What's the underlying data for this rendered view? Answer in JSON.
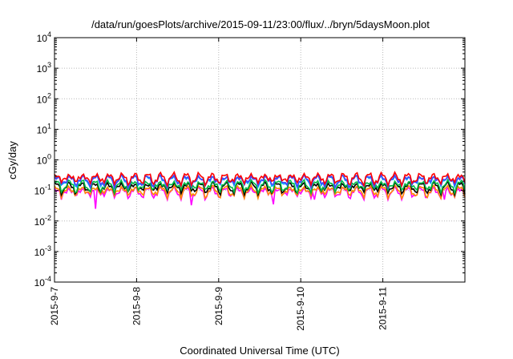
{
  "chart_data": {
    "type": "line",
    "title": "/data/run/goesPlots/archive/2015-09-11/23:00/flux/../bryn/5daysMoon.plot",
    "xlabel": "Coordinated Universal Time (UTC)",
    "ylabel": "cGy/day",
    "yscale": "log",
    "ylim": [
      0.0001,
      10000
    ],
    "xlim": [
      "2015-09-07",
      "2015-09-12"
    ],
    "grid": true,
    "x_ticks": [
      "2015-9-7",
      "2015-9-8",
      "2015-9-9",
      "2015-9-10",
      "2015-9-11"
    ],
    "y_ticks": [
      {
        "base": "10",
        "exp": "-4"
      },
      {
        "base": "10",
        "exp": "-3"
      },
      {
        "base": "10",
        "exp": "-2"
      },
      {
        "base": "10",
        "exp": "-1"
      },
      {
        "base": "10",
        "exp": "0"
      },
      {
        "base": "10",
        "exp": "1"
      },
      {
        "base": "10",
        "exp": "2"
      },
      {
        "base": "10",
        "exp": "3"
      },
      {
        "base": "10",
        "exp": "4"
      }
    ],
    "series": [
      {
        "color": "#ff00ff",
        "typical": 0.09,
        "dips": [
          {
            "x": "2015-09-07 02:00",
            "y": 0.05
          },
          {
            "x": "2015-09-07 12:00",
            "y": 0.025
          },
          {
            "x": "2015-09-08 15:50",
            "y": 0.006
          },
          {
            "x": "2015-09-09 16:00",
            "y": 0.035
          },
          {
            "x": "2015-09-10 04:00",
            "y": 0.05
          },
          {
            "x": "2015-09-11 17:00",
            "y": 0.06
          },
          {
            "x": "2015-09-11 18:00",
            "y": 0.05
          },
          {
            "x": "2015-09-11 21:00",
            "y": 0.06
          }
        ]
      },
      {
        "color": "#ff8c00",
        "typical": 0.1
      },
      {
        "color": "#000000",
        "typical": 0.13
      },
      {
        "color": "#00bb44",
        "typical": 0.15
      },
      {
        "color": "#00aaff",
        "typical": 0.22
      },
      {
        "color": "#4444ff",
        "typical": 0.22
      },
      {
        "color": "#ff0000",
        "typical": 0.26
      }
    ]
  }
}
